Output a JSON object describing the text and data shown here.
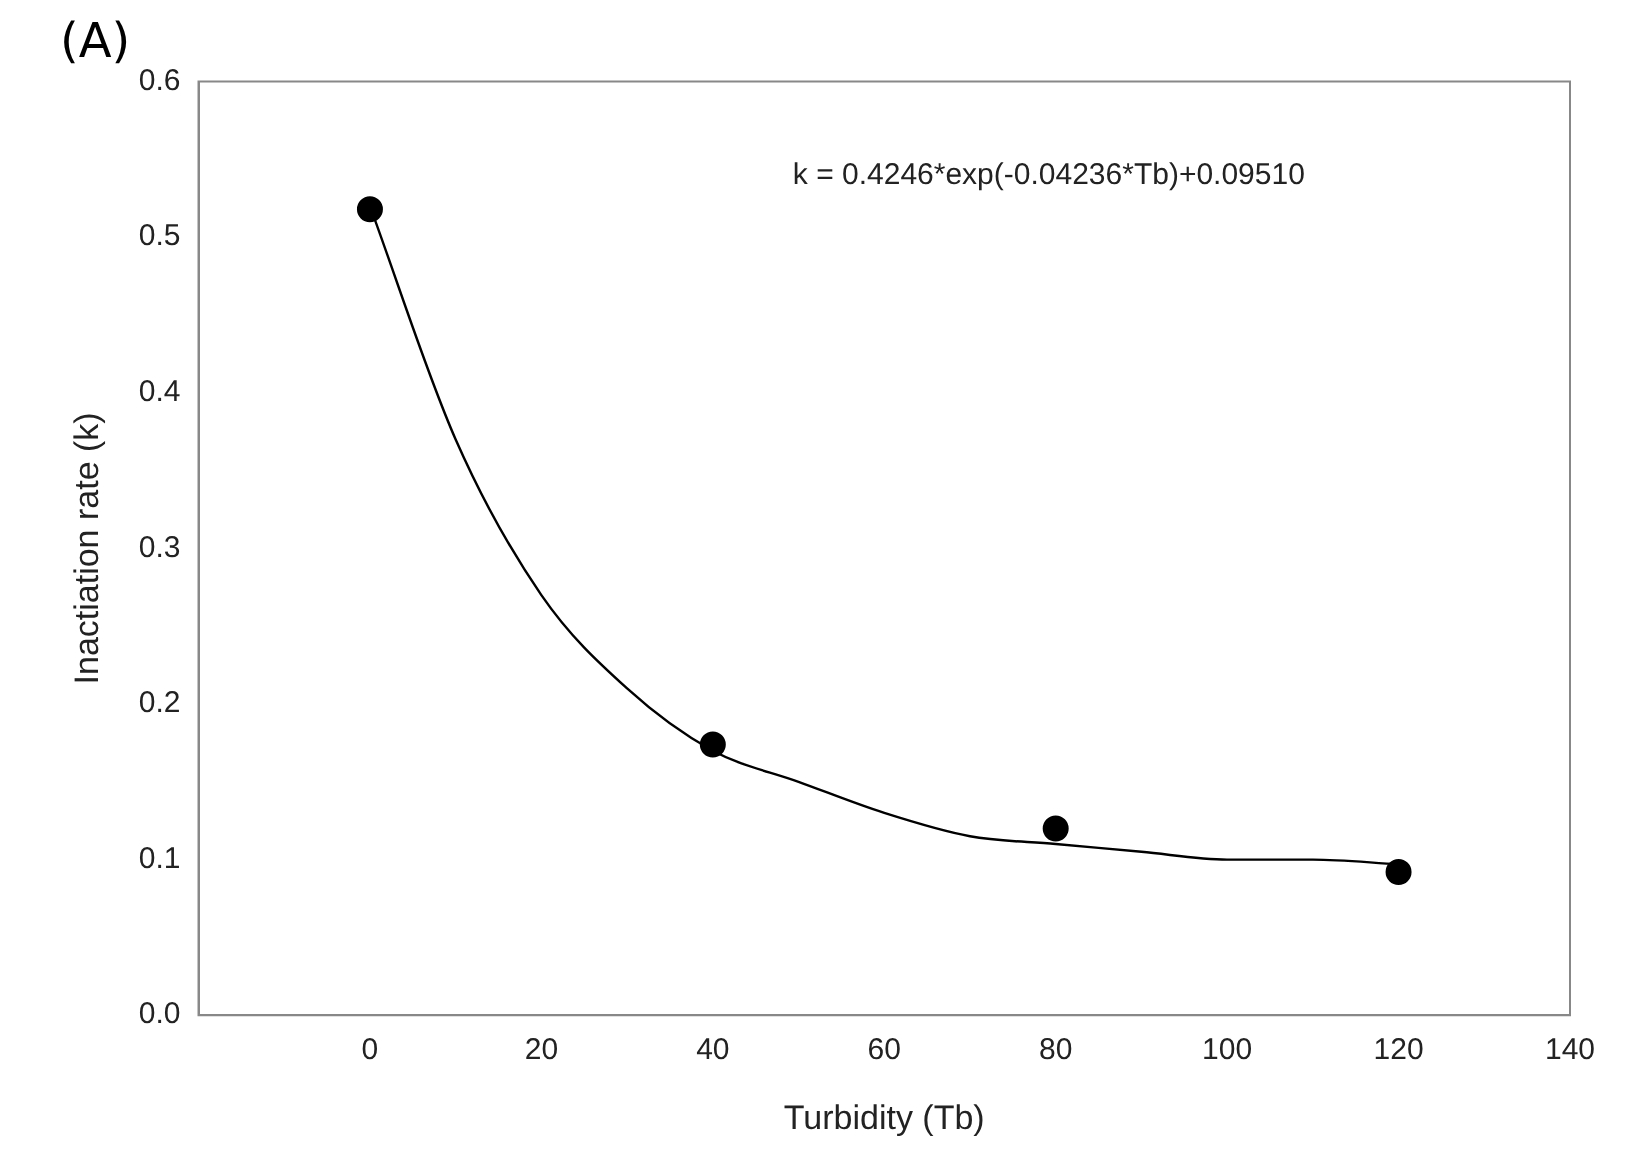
{
  "chart_data": {
    "type": "scatter",
    "title": "(A)",
    "xlabel": "Turbidity (Tb)",
    "ylabel": "Inactiation rate (k)",
    "annotations": [
      "k = 0.4246*exp(-0.04236*Tb)+0.09510"
    ],
    "xlim": [
      -20,
      140
    ],
    "xticks": [
      0,
      20,
      40,
      60,
      80,
      100,
      120,
      140
    ],
    "ylim": [
      0,
      0.6
    ],
    "yticks": [
      {
        "value": 0,
        "label": "0.0"
      },
      0.1,
      0.2,
      0.3,
      0.4,
      0.5,
      0.6
    ],
    "grid": false,
    "legend": false,
    "series": [
      {
        "color": "#000000",
        "marker": "circle",
        "x": [
          0,
          40,
          80,
          120
        ],
        "values": [
          0.518,
          0.174,
          0.12,
          0.092
        ]
      },
      {
        "type": "line",
        "color": "#000000",
        "marker": "none",
        "line_style": "solid",
        "x": [
          0,
          10,
          20,
          30,
          40,
          50,
          60,
          70,
          80,
          90,
          100,
          110,
          120
        ],
        "values": [
          0.52,
          0.37,
          0.27,
          0.21,
          0.17,
          0.15,
          0.13,
          0.115,
          0.11,
          0.105,
          0.1,
          0.1,
          0.097
        ]
      }
    ]
  }
}
